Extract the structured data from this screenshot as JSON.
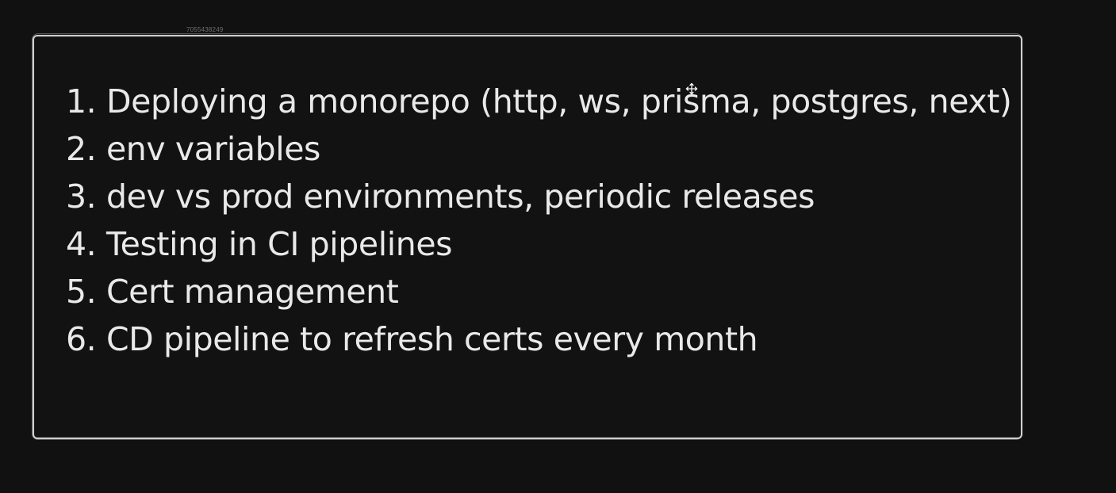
{
  "watermark": "7055438249",
  "agenda": {
    "items": [
      "1. Deploying a monorepo (http, ws, prisma, postgres, next)",
      "2. env variables",
      "3. dev vs prod environments, periodic releases",
      "4. Testing in CI pipelines",
      "5. Cert management",
      "6. CD pipeline to refresh certs every month"
    ]
  },
  "icons": {
    "cursor": "move-cursor-icon"
  },
  "colors": {
    "background": "#111111",
    "frame_border": "#cfcfcf",
    "text": "#e9e9e9"
  }
}
